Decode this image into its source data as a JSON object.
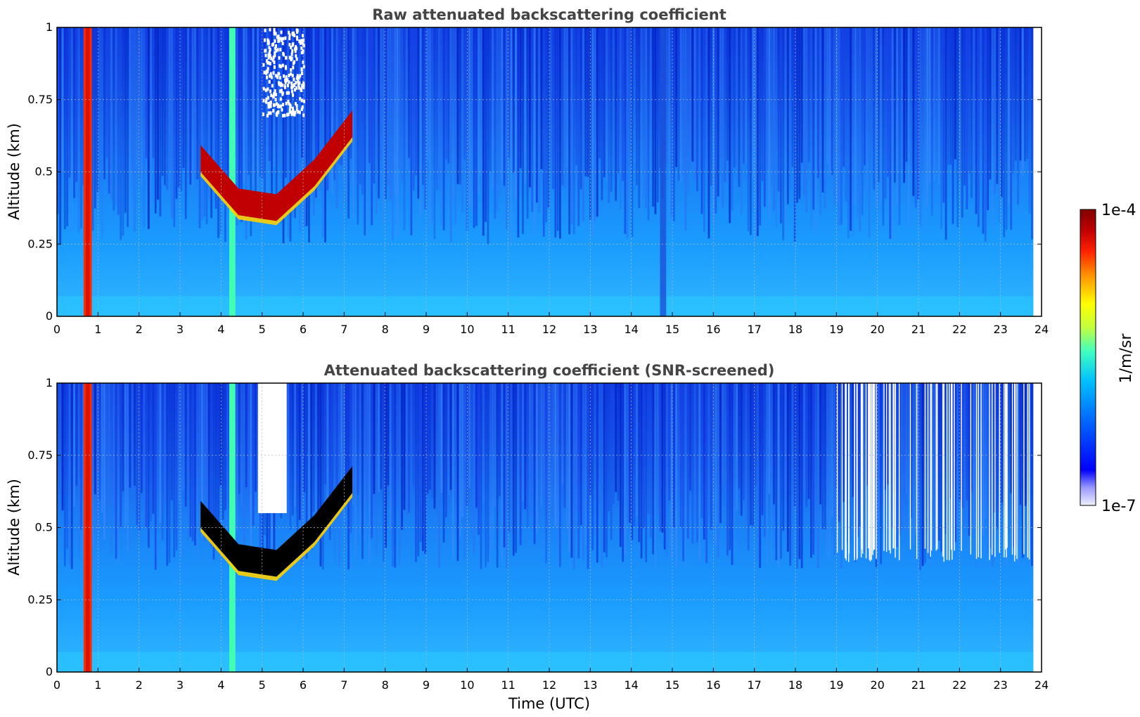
{
  "chart_data": [
    {
      "type": "heatmap",
      "title": "Raw attenuated backscattering coefficient",
      "xlabel": "",
      "ylabel": "Altitude (km)",
      "xlim": [
        0,
        24
      ],
      "ylim": [
        0,
        1
      ],
      "x_ticks": [
        "0",
        "1",
        "2",
        "3",
        "4",
        "5",
        "6",
        "7",
        "8",
        "9",
        "10",
        "11",
        "12",
        "13",
        "14",
        "15",
        "16",
        "17",
        "18",
        "19",
        "20",
        "21",
        "22",
        "23",
        "24"
      ],
      "y_ticks": [
        "0",
        "0.25",
        "0.5",
        "0.75",
        "1"
      ],
      "grid": true,
      "features": [
        {
          "kind": "vertical-band",
          "x_range": [
            0.65,
            0.85
          ],
          "y_range": [
            0,
            1
          ],
          "level": "high"
        },
        {
          "kind": "vertical-band",
          "x_range": [
            4.2,
            4.35
          ],
          "y_range": [
            0,
            1
          ],
          "level": "medium"
        },
        {
          "kind": "cloud-layer",
          "x_range": [
            3.5,
            7.2
          ],
          "altitude_base_km": [
            0.5,
            0.35,
            0.33,
            0.45,
            0.62
          ],
          "level": "high"
        },
        {
          "kind": "noise-region",
          "x_range": [
            5.0,
            6.0
          ],
          "y_range": [
            0.7,
            1.0
          ],
          "level": "missing"
        },
        {
          "kind": "vertical-band",
          "x_range": [
            14.7,
            14.85
          ],
          "y_range": [
            0,
            1
          ],
          "level": "low"
        },
        {
          "kind": "data-end",
          "x": 23.8
        }
      ]
    },
    {
      "type": "heatmap",
      "title": "Attenuated backscattering coefficient (SNR-screened)",
      "xlabel": "Time (UTC)",
      "ylabel": "Altitude (km)",
      "xlim": [
        0,
        24
      ],
      "ylim": [
        0,
        1
      ],
      "x_ticks": [
        "0",
        "1",
        "2",
        "3",
        "4",
        "5",
        "6",
        "7",
        "8",
        "9",
        "10",
        "11",
        "12",
        "13",
        "14",
        "15",
        "16",
        "17",
        "18",
        "19",
        "20",
        "21",
        "22",
        "23",
        "24"
      ],
      "y_ticks": [
        "0",
        "0.25",
        "0.5",
        "0.75",
        "1"
      ],
      "grid": true,
      "features": [
        {
          "kind": "vertical-band",
          "x_range": [
            0.65,
            0.85
          ],
          "y_range": [
            0,
            1
          ],
          "level": "high"
        },
        {
          "kind": "vertical-band",
          "x_range": [
            4.2,
            4.35
          ],
          "y_range": [
            0,
            1
          ],
          "level": "medium"
        },
        {
          "kind": "cloud-layer",
          "x_range": [
            3.5,
            7.2
          ],
          "altitude_base_km": [
            0.5,
            0.35,
            0.33,
            0.45,
            0.62
          ],
          "level": "saturated"
        },
        {
          "kind": "screened-region",
          "x_range": [
            4.9,
            5.6
          ],
          "y_range": [
            0.55,
            1.0
          ],
          "level": "missing"
        },
        {
          "kind": "screened-strips",
          "x_range": [
            19.0,
            23.8
          ],
          "y_range": [
            0.38,
            1.0
          ],
          "level": "missing"
        },
        {
          "kind": "data-end",
          "x": 23.8
        }
      ]
    }
  ],
  "colorbar": {
    "label": "1/m/sr",
    "max_label": "1e-4",
    "min_label": "1e-7",
    "scale": "log",
    "colormap": "jet",
    "colors": [
      "#f0f0ff",
      "#9999ff",
      "#0000ff",
      "#0070ff",
      "#00c0ff",
      "#40ffc0",
      "#c0ff40",
      "#ffff00",
      "#ff9000",
      "#ff2000",
      "#c00000",
      "#800000"
    ]
  }
}
